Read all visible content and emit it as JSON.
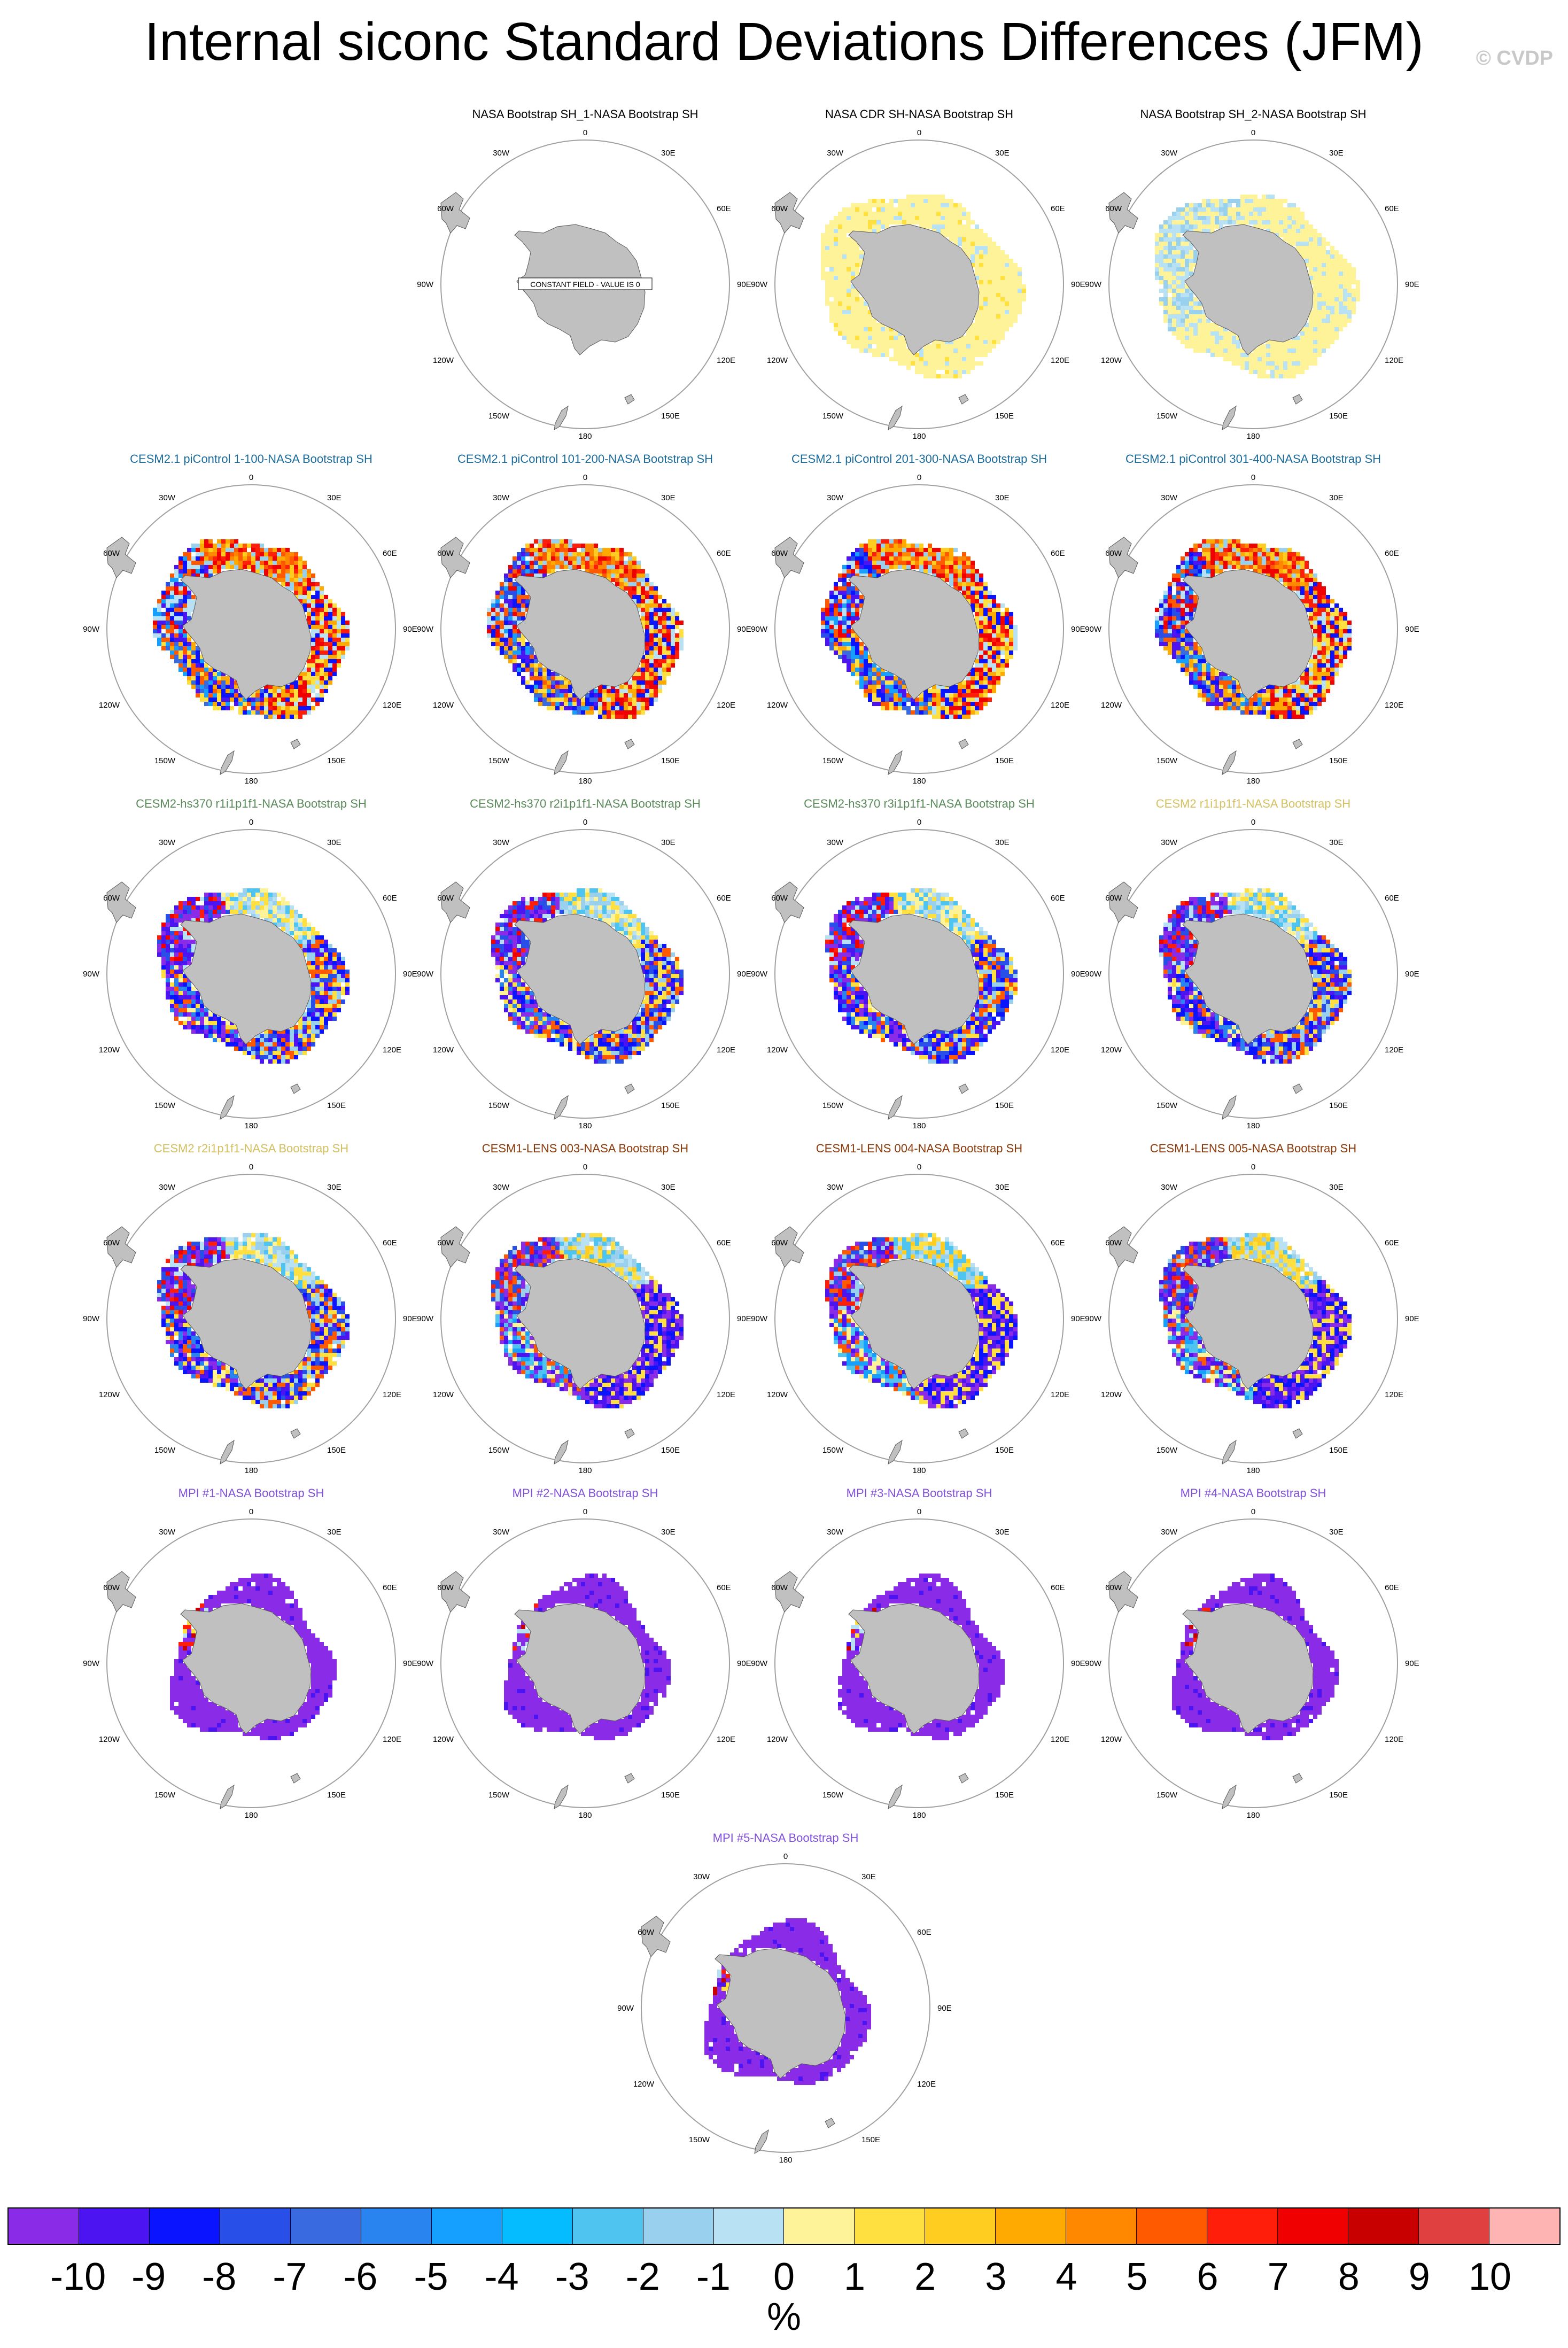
{
  "title": "Internal siconc Standard Deviations Differences (JFM)",
  "credit": "© CVDP",
  "map_labels": {
    "lon_0": "0",
    "lon_30e": "30E",
    "lon_60e": "60E",
    "lon_90e": "90E",
    "lon_120e": "120E",
    "lon_150e": "150E",
    "lon_180": "180",
    "lon_150w": "150W",
    "lon_120w": "120W",
    "lon_90w": "90W",
    "lon_60w": "60W",
    "lon_30w": "30W"
  },
  "colors": {
    "land": "#c0c0c0",
    "coast": "#555555",
    "circle": "#a0a0a0",
    "piControl_title": "#1a6a9a",
    "hs370_title": "#5a8a5a",
    "cesm2_title": "#d4c060",
    "lens_title": "#8b3a0a",
    "mpi_title": "#8050d8"
  },
  "panels": [
    {
      "title": "NASA Bootstrap SH_1-NASA Bootstrap SH",
      "color": "#000000",
      "pattern": "constant",
      "note": "CONSTANT FIELD - VALUE IS 0"
    },
    {
      "title": "NASA CDR SH-NASA Bootstrap SH",
      "color": "#000000",
      "pattern": "cdr"
    },
    {
      "title": "NASA Bootstrap SH_2-NASA Bootstrap SH",
      "color": "#000000",
      "pattern": "bootstrap2"
    },
    {
      "title": "CESM2.1 piControl 1-100-NASA Bootstrap SH",
      "color": "#1a6a9a",
      "pattern": "picontrol"
    },
    {
      "title": "CESM2.1 piControl 101-200-NASA Bootstrap SH",
      "color": "#1a6a9a",
      "pattern": "picontrol"
    },
    {
      "title": "CESM2.1 piControl 201-300-NASA Bootstrap SH",
      "color": "#1a6a9a",
      "pattern": "picontrol"
    },
    {
      "title": "CESM2.1 piControl 301-400-NASA Bootstrap SH",
      "color": "#1a6a9a",
      "pattern": "picontrol"
    },
    {
      "title": "CESM2-hs370 r1i1p1f1-NASA Bootstrap SH",
      "color": "#5a8a5a",
      "pattern": "hs370"
    },
    {
      "title": "CESM2-hs370 r2i1p1f1-NASA Bootstrap SH",
      "color": "#5a8a5a",
      "pattern": "hs370"
    },
    {
      "title": "CESM2-hs370 r3i1p1f1-NASA Bootstrap SH",
      "color": "#5a8a5a",
      "pattern": "hs370"
    },
    {
      "title": "CESM2 r1i1p1f1-NASA Bootstrap SH",
      "color": "#d4c060",
      "pattern": "hs370"
    },
    {
      "title": "CESM2 r2i1p1f1-NASA Bootstrap SH",
      "color": "#d4c060",
      "pattern": "hs370"
    },
    {
      "title": "CESM1-LENS 003-NASA Bootstrap SH",
      "color": "#8b3a0a",
      "pattern": "lens"
    },
    {
      "title": "CESM1-LENS 004-NASA Bootstrap SH",
      "color": "#8b3a0a",
      "pattern": "lens"
    },
    {
      "title": "CESM1-LENS 005-NASA Bootstrap SH",
      "color": "#8b3a0a",
      "pattern": "lens"
    },
    {
      "title": "MPI #1-NASA Bootstrap SH",
      "color": "#8050d8",
      "pattern": "mpi"
    },
    {
      "title": "MPI #2-NASA Bootstrap SH",
      "color": "#8050d8",
      "pattern": "mpi"
    },
    {
      "title": "MPI #3-NASA Bootstrap SH",
      "color": "#8050d8",
      "pattern": "mpi"
    },
    {
      "title": "MPI #4-NASA Bootstrap SH",
      "color": "#8050d8",
      "pattern": "mpi"
    },
    {
      "title": "MPI #5-NASA Bootstrap SH",
      "color": "#8050d8",
      "pattern": "mpi"
    }
  ],
  "colorbar": {
    "colors": [
      "#8a2be8",
      "#4b14f0",
      "#0a14ff",
      "#2850e8",
      "#3a6ae0",
      "#2a84f0",
      "#15a0ff",
      "#04bcff",
      "#50c4f0",
      "#98d0ee",
      "#b8e2f4",
      "#fff39a",
      "#ffe040",
      "#ffcc20",
      "#ffaa00",
      "#ff8800",
      "#ff5a00",
      "#ff1e0a",
      "#f00000",
      "#c80000",
      "#e04040",
      "#ffb4b4"
    ],
    "tick_labels": [
      "-10",
      "-9",
      "-8",
      "-7",
      "-6",
      "-5",
      "-4",
      "-3",
      "-2",
      "-1",
      "0",
      "1",
      "2",
      "3",
      "4",
      "5",
      "6",
      "7",
      "8",
      "9",
      "10"
    ],
    "units": "%"
  }
}
